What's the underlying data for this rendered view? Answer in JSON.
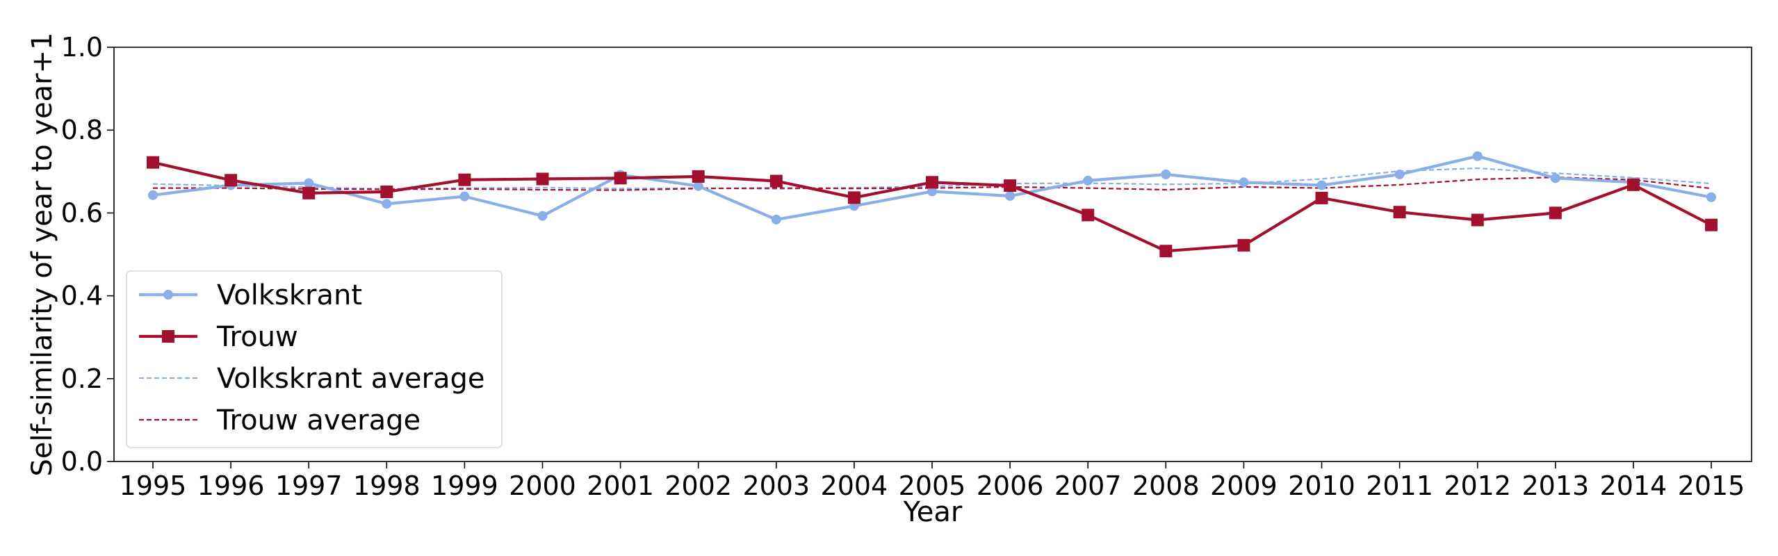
{
  "chart_data": {
    "type": "line",
    "xlabel": "Year",
    "ylabel": "Self-similarity of year to year+1",
    "ylim": [
      0,
      1.0
    ],
    "yticks": [
      "0.0",
      "0.2",
      "0.4",
      "0.6",
      "0.8",
      "1.0"
    ],
    "ytick_values": [
      0,
      0.2,
      0.4,
      0.6,
      0.8,
      1.0
    ],
    "categories": [
      "1995",
      "1996",
      "1997",
      "1998",
      "1999",
      "2000",
      "2001",
      "2002",
      "2003",
      "2004",
      "2005",
      "2006",
      "2007",
      "2008",
      "2009",
      "2010",
      "2011",
      "2012",
      "2013",
      "2014",
      "2015"
    ],
    "grid": false,
    "legend_position": "lower-left",
    "series": [
      {
        "name": "Volkskrant",
        "color": "#8aaee8",
        "marker": "circle",
        "style": "solid",
        "values": [
          0.643,
          0.667,
          0.672,
          0.622,
          0.64,
          0.593,
          0.692,
          0.665,
          0.584,
          0.617,
          0.652,
          0.641,
          0.678,
          0.693,
          0.674,
          0.667,
          0.693,
          0.737,
          0.684,
          0.674,
          0.638
        ]
      },
      {
        "name": "Trouw",
        "color": "#a3102e",
        "marker": "square",
        "style": "solid",
        "values": [
          0.722,
          0.679,
          0.648,
          0.651,
          0.68,
          0.682,
          0.684,
          0.688,
          0.677,
          0.637,
          0.674,
          0.666,
          0.595,
          0.508,
          0.522,
          0.636,
          0.602,
          0.583,
          0.6,
          0.668,
          0.571
        ]
      },
      {
        "name": "Volkskrant average",
        "color": "#8aaee8",
        "marker": "none",
        "style": "dashed",
        "values": [
          0.67,
          0.666,
          0.662,
          0.658,
          0.66,
          0.661,
          0.659,
          0.66,
          0.658,
          0.661,
          0.664,
          0.671,
          0.672,
          0.669,
          0.671,
          0.682,
          0.701,
          0.708,
          0.696,
          0.685,
          0.671
        ]
      },
      {
        "name": "Trouw average",
        "color": "#a3102e",
        "marker": "none",
        "style": "dashed",
        "values": [
          0.66,
          0.66,
          0.658,
          0.657,
          0.658,
          0.656,
          0.655,
          0.659,
          0.66,
          0.659,
          0.66,
          0.663,
          0.66,
          0.656,
          0.663,
          0.66,
          0.668,
          0.681,
          0.686,
          0.68,
          0.659
        ]
      }
    ]
  }
}
